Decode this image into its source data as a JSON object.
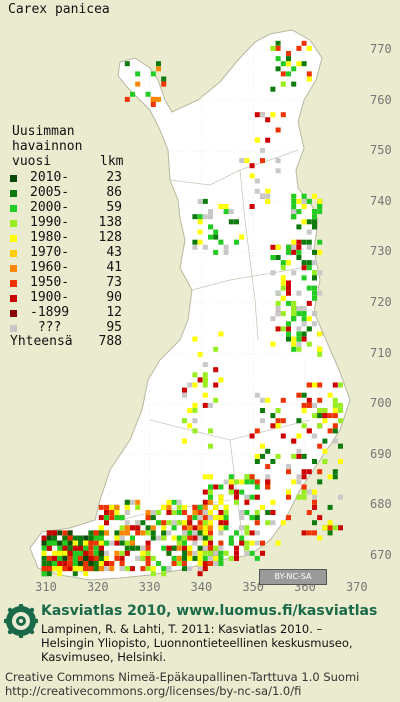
{
  "species": "Carex panicea",
  "legend": {
    "title_lines": [
      "Uusimman",
      "havainnon"
    ],
    "col_year": "vuosi",
    "col_count": "lkm",
    "entries": [
      {
        "label": "2010-",
        "count": "23",
        "color": "#0a4a0a"
      },
      {
        "label": "2005-",
        "count": "86",
        "color": "#0d7a0d"
      },
      {
        "label": "2000-",
        "count": "59",
        "color": "#22cc22"
      },
      {
        "label": "1990-",
        "count": "138",
        "color": "#99ee22"
      },
      {
        "label": "1980-",
        "count": "128",
        "color": "#ffff00"
      },
      {
        "label": "1970-",
        "count": "43",
        "color": "#ffcc00"
      },
      {
        "label": "1960-",
        "count": "41",
        "color": "#ff8800"
      },
      {
        "label": "1950-",
        "count": "73",
        "color": "#ee3300"
      },
      {
        "label": "1900-",
        "count": "90",
        "color": "#cc0000"
      },
      {
        "label": "-1899",
        "count": "12",
        "color": "#880000"
      },
      {
        "label": " ???",
        "count": "95",
        "color": "#c8c8c8"
      }
    ],
    "total_label": "Yhteensä",
    "total_count": "788"
  },
  "y_ticks": [
    "770",
    "760",
    "750",
    "740",
    "730",
    "720",
    "710",
    "700",
    "690",
    "680",
    "670"
  ],
  "x_ticks": [
    "310",
    "320",
    "330",
    "340",
    "350",
    "360",
    "370"
  ],
  "cc_badge": "BY-NC-SA",
  "footer": {
    "title": "Kasviatlas 2010, www.luomus.fi/kasviatlas",
    "citation": [
      "Lampinen, R. & Lahti, T. 2011: Kasviatlas 2010. –",
      "Helsingin Yliopisto, Luonnontieteellinen keskusmuseo,",
      "Kasvimuseo, Helsinki."
    ],
    "license": [
      "Creative Commons Nimeä-Epäkaupallinen-Tarttuva 1.0 Suomi",
      "http://creativecommons.org/licenses/by-nc-sa/1.0/fi"
    ]
  },
  "colors": {
    "background": "#ebebcf",
    "land": "#ffffff",
    "title_green": "#1a6a4a"
  }
}
